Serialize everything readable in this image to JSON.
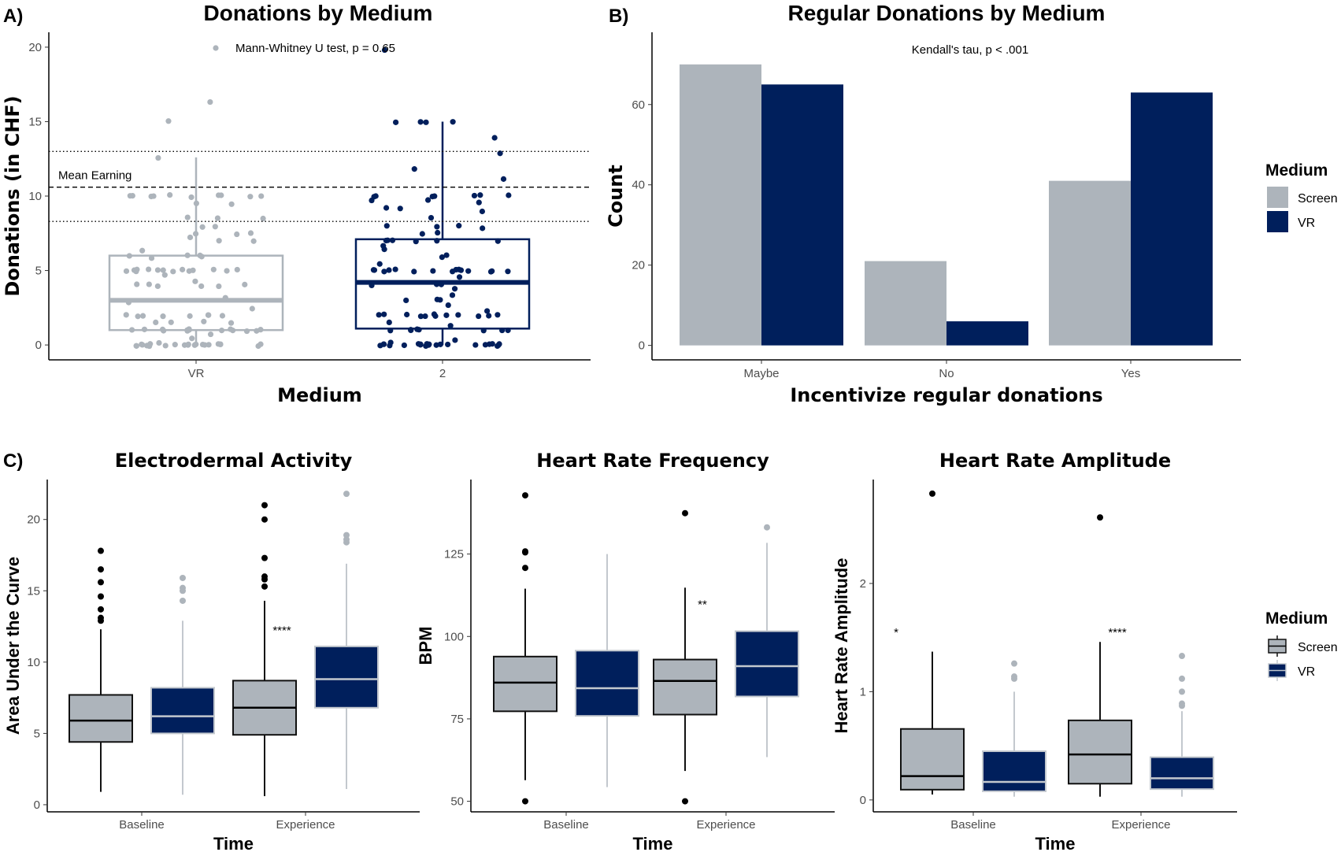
{
  "colors": {
    "screen": "#adb4bb",
    "vr": "#001f5c",
    "vr_light_line": "#c3c8ce",
    "axis_text": "#4d4d4d"
  },
  "legend": {
    "title": "Medium",
    "entries": [
      "Screen",
      "VR"
    ],
    "placement": "right"
  },
  "chart_data": [
    {
      "panel_label": "A)",
      "type": "box",
      "title": "Donations by Medium",
      "xlabel": "Medium",
      "ylabel": "Donations (in CHF)",
      "categories": [
        "VR",
        "2"
      ],
      "yticks": [
        0,
        5,
        10,
        15,
        20
      ],
      "ylim": [
        -1,
        21
      ],
      "grid": false,
      "annotation": "Mann-Whitney U test, p = 0.65",
      "reference_lines": [
        {
          "value": 13.0,
          "style": "dotted"
        },
        {
          "value": 10.6,
          "style": "dashed",
          "label": "Mean Earning"
        },
        {
          "value": 8.3,
          "style": "dotted"
        }
      ],
      "boxes": [
        {
          "q1": 1.0,
          "median": 3.0,
          "q3": 6.0,
          "whisker_low": 0,
          "whisker_high": 12.6
        },
        {
          "q1": 1.1,
          "median": 4.2,
          "q3": 7.1,
          "whisker_low": 0,
          "whisker_high": 15.0
        }
      ],
      "points": [
        [
          0,
          0,
          0,
          0,
          0,
          0,
          0,
          0,
          0,
          0,
          0,
          0,
          0,
          0,
          0,
          0,
          0,
          0,
          0,
          0,
          0,
          0,
          0.2,
          0.4,
          0.7,
          1,
          1,
          1,
          1,
          1,
          1,
          1,
          1,
          1,
          1,
          1,
          1,
          1,
          1,
          1.5,
          1.5,
          1.5,
          1.5,
          2,
          2,
          2,
          2,
          2,
          2,
          2,
          2,
          2.4,
          2.8,
          3.2,
          4,
          4,
          4,
          4,
          4,
          4,
          4.2,
          4.7,
          5,
          5,
          5,
          5,
          5,
          5,
          5,
          5,
          5,
          5,
          5,
          5,
          5,
          5,
          5.8,
          6,
          6,
          6,
          6,
          6.4,
          7,
          7,
          7.3,
          7.5,
          7.5,
          7.5,
          8,
          8,
          8.5,
          8.5,
          8.5,
          9.5,
          9.5,
          10,
          10,
          10,
          10,
          10,
          10,
          10,
          10,
          10,
          10,
          12.6,
          15.1,
          16.3
        ],
        [
          0,
          0,
          0,
          0,
          0,
          0,
          0,
          0,
          0,
          0,
          0,
          0,
          0,
          0,
          0,
          0,
          0,
          0,
          0,
          0,
          0,
          0,
          0.2,
          0.4,
          1,
          1,
          1,
          1,
          1,
          1,
          1,
          1,
          1.3,
          1.5,
          2,
          2,
          2,
          2,
          2,
          2,
          2,
          2,
          2,
          2,
          2,
          2,
          2.3,
          2.6,
          3,
          3,
          3,
          3.3,
          3.8,
          4,
          4,
          4,
          4.5,
          4.9,
          5,
          5,
          5,
          5,
          5,
          5,
          5,
          5,
          5,
          5,
          5,
          5,
          5,
          5,
          5.4,
          5.9,
          6.1,
          6.4,
          6.6,
          7,
          7,
          7,
          7,
          7,
          7,
          7.5,
          7.5,
          7.8,
          8,
          8,
          8,
          8.5,
          9,
          9.2,
          9.2,
          9.5,
          9.7,
          9.7,
          10,
          10,
          10,
          10,
          10,
          10,
          10.1,
          11.1,
          11.8,
          12.9,
          13.9,
          15,
          15,
          15,
          15,
          19.8
        ]
      ]
    },
    {
      "panel_label": "B)",
      "type": "bar",
      "title": "Regular Donations by Medium",
      "xlabel": "Incentivize regular donations",
      "ylabel": "Count",
      "categories": [
        "Maybe",
        "No",
        "Yes"
      ],
      "yticks": [
        0,
        20,
        40,
        60
      ],
      "ylim": [
        -3.6,
        78
      ],
      "grid": false,
      "annotation": "Kendall's tau, p < .001",
      "series": [
        {
          "name": "Screen",
          "values": [
            70,
            21,
            41
          ]
        },
        {
          "name": "VR",
          "values": [
            65,
            6,
            63
          ]
        }
      ]
    },
    {
      "panel_label": "C)",
      "type": "box",
      "title": "Electrodermal Activity",
      "xlabel": "Time",
      "ylabel": "Area Under the Curve",
      "categories": [
        "Baseline",
        "Experience"
      ],
      "yticks": [
        0,
        5,
        10,
        15,
        20
      ],
      "ylim": [
        -0.5,
        22.8
      ],
      "grid": false,
      "significance": [
        {
          "category": "Baseline",
          "label": "",
          "y": 12.4
        },
        {
          "category": "Experience",
          "label": "****",
          "y": 12.4
        }
      ],
      "series": [
        {
          "name": "Screen",
          "boxes": [
            {
              "q1": 4.4,
              "median": 5.9,
              "q3": 7.7,
              "whisker_low": 0.9,
              "whisker_high": 12.3,
              "outliers": [
                17.8,
                16.5,
                15.6,
                14.6,
                13.7,
                13.1,
                12.9
              ]
            },
            {
              "q1": 4.9,
              "median": 6.8,
              "q3": 8.7,
              "whisker_low": 0.6,
              "whisker_high": 14.3,
              "outliers": [
                21.0,
                20.0,
                17.3,
                16.0,
                15.8,
                15.3
              ]
            }
          ]
        },
        {
          "name": "VR",
          "boxes": [
            {
              "q1": 5.0,
              "median": 6.2,
              "q3": 8.2,
              "whisker_low": 0.7,
              "whisker_high": 12.9,
              "outliers": [
                15.9,
                15.2,
                15.0,
                14.3
              ]
            },
            {
              "q1": 6.8,
              "median": 8.8,
              "q3": 11.1,
              "whisker_low": 1.1,
              "whisker_high": 16.9,
              "outliers": [
                21.8,
                18.9,
                18.6,
                18.4
              ]
            }
          ]
        }
      ]
    },
    {
      "type": "box",
      "title": "Heart Rate Frequency",
      "xlabel": "Time",
      "ylabel": "BPM",
      "categories": [
        "Baseline",
        "Experience"
      ],
      "yticks": [
        50,
        75,
        100,
        125
      ],
      "ylim": [
        46.8,
        147.6
      ],
      "grid": false,
      "significance": [
        {
          "category": "Baseline",
          "label": "",
          "y": 110.4
        },
        {
          "category": "Experience",
          "label": "**",
          "y": 110.4
        }
      ],
      "series": [
        {
          "name": "Screen",
          "boxes": [
            {
              "q1": 77.3,
              "median": 86.0,
              "q3": 93.9,
              "whisker_low": 56.4,
              "whisker_high": 114.5,
              "outliers": [
                142.8,
                125.8,
                125.5,
                120.8,
                50.0
              ]
            },
            {
              "q1": 76.3,
              "median": 86.5,
              "q3": 93.0,
              "whisker_low": 59.2,
              "whisker_high": 114.8,
              "outliers": [
                137.4,
                50.0
              ]
            }
          ]
        },
        {
          "name": "VR",
          "boxes": [
            {
              "q1": 75.9,
              "median": 84.3,
              "q3": 95.7,
              "whisker_low": 54.3,
              "whisker_high": 125.0,
              "outliers": []
            },
            {
              "q1": 81.8,
              "median": 91.0,
              "q3": 101.6,
              "whisker_low": 63.4,
              "whisker_high": 128.4,
              "outliers": [
                133.1
              ]
            }
          ]
        }
      ]
    },
    {
      "type": "box",
      "title": "Heart Rate Amplitude",
      "xlabel": "Time",
      "ylabel": "Heart Rate Amplitude",
      "categories": [
        "Baseline",
        "Experience"
      ],
      "yticks": [
        0,
        1,
        2
      ],
      "ylim": [
        -0.11,
        2.96
      ],
      "grid": false,
      "significance": [
        {
          "category": "Baseline",
          "label": "*",
          "y": 1.57
        },
        {
          "category": "Experience",
          "label": "****",
          "y": 1.57
        }
      ],
      "series": [
        {
          "name": "Screen",
          "boxes": [
            {
              "q1": 0.095,
              "median": 0.22,
              "q3": 0.656,
              "whisker_low": 0.05,
              "whisker_high": 1.37,
              "outliers": [
                2.83
              ]
            },
            {
              "q1": 0.15,
              "median": 0.42,
              "q3": 0.735,
              "whisker_low": 0.03,
              "whisker_high": 1.46,
              "outliers": [
                2.61
              ]
            }
          ]
        },
        {
          "name": "VR",
          "boxes": [
            {
              "q1": 0.08,
              "median": 0.166,
              "q3": 0.45,
              "whisker_low": 0.03,
              "whisker_high": 1.0,
              "outliers": [
                1.26,
                1.14,
                1.12
              ]
            },
            {
              "q1": 0.1,
              "median": 0.2,
              "q3": 0.395,
              "whisker_low": 0.03,
              "whisker_high": 0.82,
              "outliers": [
                1.33,
                1.12,
                1.0,
                0.89,
                0.87
              ]
            }
          ]
        }
      ]
    }
  ]
}
